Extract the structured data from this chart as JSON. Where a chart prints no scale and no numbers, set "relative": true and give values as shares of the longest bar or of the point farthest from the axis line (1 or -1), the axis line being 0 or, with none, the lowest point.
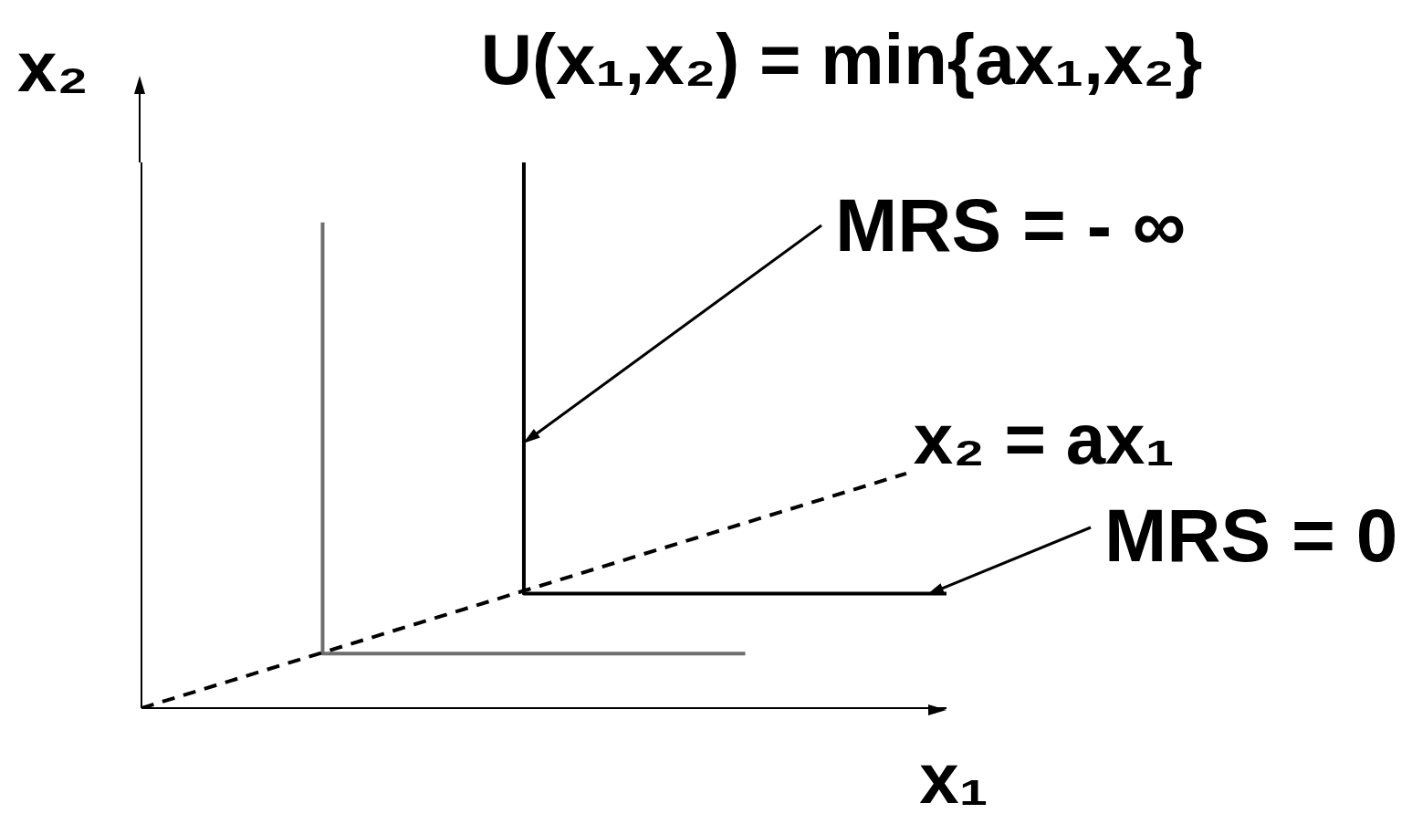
{
  "chart_data": {
    "type": "line",
    "title": "U(x₁,x₂) = min{ax₁,x₂}",
    "xlabel": "x₁",
    "ylabel": "x₂",
    "relative": true,
    "marker": "none",
    "annotations": [
      "MRS = - ∞",
      "MRS = 0"
    ],
    "categories": [
      null,
      null,
      null,
      null,
      null,
      null,
      null,
      null,
      null,
      null,
      null,
      null,
      null,
      null,
      null,
      null,
      null,
      null,
      null,
      null,
      null,
      null,
      null,
      null,
      null,
      null,
      null,
      null,
      null,
      null,
      null,
      null,
      null,
      null,
      null,
      null,
      null,
      null,
      null,
      null,
      null
    ],
    "series": [
      {
        "type": "step",
        "color": "#6e6e6e",
        "values": [
          null,
          null,
          null,
          null,
          null,
          null,
          null,
          null,
          null,
          0.89,
          null,
          null,
          null,
          null,
          null,
          null,
          null,
          null,
          null,
          null,
          null,
          null,
          null,
          null,
          null,
          null,
          null,
          null,
          null,
          null,
          0.1,
          null,
          null,
          null,
          null,
          null,
          null,
          null,
          null,
          null,
          null
        ]
      },
      {
        "type": "step",
        "color": "#000000",
        "values": [
          null,
          null,
          null,
          null,
          null,
          null,
          null,
          null,
          null,
          null,
          null,
          null,
          null,
          null,
          null,
          null,
          null,
          null,
          null,
          1,
          null,
          null,
          null,
          null,
          null,
          null,
          null,
          null,
          null,
          null,
          null,
          null,
          null,
          null,
          null,
          null,
          null,
          null,
          null,
          null,
          0.21
        ]
      },
      {
        "name": "x₂ = ax₁",
        "color": "#000000",
        "line_style": "dashed",
        "values": [
          0,
          null,
          null,
          null,
          null,
          null,
          null,
          null,
          null,
          null,
          null,
          null,
          null,
          null,
          null,
          null,
          null,
          null,
          null,
          null,
          null,
          null,
          null,
          null,
          null,
          null,
          null,
          null,
          null,
          null,
          null,
          null,
          null,
          null,
          null,
          null,
          null,
          null,
          0.43,
          null,
          null
        ]
      }
    ]
  }
}
